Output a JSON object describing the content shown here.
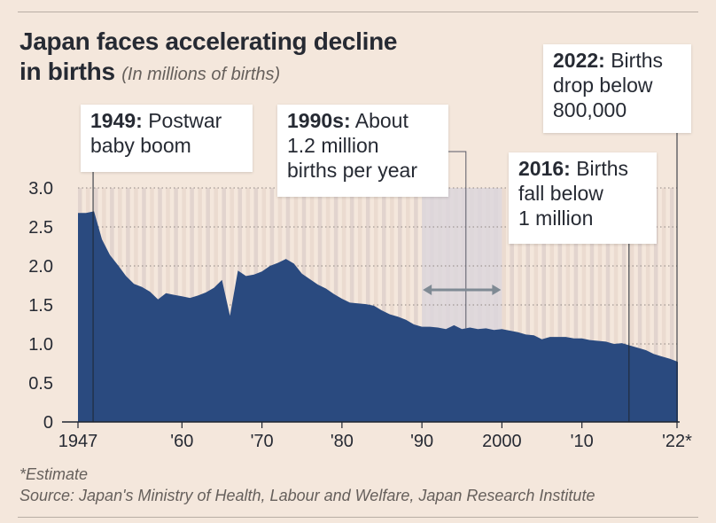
{
  "header": {
    "title_line1": "Japan faces accelerating decline",
    "title_line2": "in births",
    "subtitle": "(In millions of births)"
  },
  "footer": {
    "note": "*Estimate",
    "source": "Source: Japan's Ministry of Health, Labour and Welfare, Japan Research Institute"
  },
  "annotations": [
    {
      "year": "1949:",
      "text": "Postwar",
      "lines": [
        "baby boom"
      ]
    },
    {
      "year": "1990s:",
      "text": "About",
      "lines": [
        "1.2 million",
        "births per year"
      ]
    },
    {
      "year": "2016:",
      "text": "Births",
      "lines": [
        "fall below",
        "1 million"
      ]
    },
    {
      "year": "2022:",
      "text": "Births",
      "lines": [
        "drop below",
        "800,000"
      ]
    }
  ],
  "colors": {
    "background": "#f4e7dc",
    "area": "#2a4a7f",
    "stripe_light": "#ebdbd0",
    "stripe_dark": "#e2d4ce",
    "highlight": "#dcd6dc",
    "arrow": "#7f8a94"
  },
  "chart_data": {
    "type": "area",
    "title": "Japan faces accelerating decline in births",
    "ylabel": "In millions of births",
    "xlabel": "",
    "ylim": [
      0,
      3.0
    ],
    "xlim": [
      1947,
      2022
    ],
    "yticks": [
      0,
      0.5,
      1.0,
      1.5,
      2.0,
      2.5,
      3.0
    ],
    "ytick_labels": [
      "0",
      "0.5",
      "1.0",
      "1.5",
      "2.0",
      "2.5",
      "3.0"
    ],
    "xticks": [
      1947,
      1960,
      1970,
      1980,
      1990,
      2000,
      2010,
      2022
    ],
    "xtick_labels": [
      "1947",
      "'60",
      "'70",
      "'80",
      "'90",
      "2000",
      "'10",
      "'22*"
    ],
    "highlight_range": [
      1990,
      2000
    ],
    "x": [
      1947,
      1948,
      1949,
      1950,
      1951,
      1952,
      1953,
      1954,
      1955,
      1956,
      1957,
      1958,
      1959,
      1960,
      1961,
      1962,
      1963,
      1964,
      1965,
      1966,
      1967,
      1968,
      1969,
      1970,
      1971,
      1972,
      1973,
      1974,
      1975,
      1976,
      1977,
      1978,
      1979,
      1980,
      1981,
      1982,
      1983,
      1984,
      1985,
      1986,
      1987,
      1988,
      1989,
      1990,
      1991,
      1992,
      1993,
      1994,
      1995,
      1996,
      1997,
      1998,
      1999,
      2000,
      2001,
      2002,
      2003,
      2004,
      2005,
      2006,
      2007,
      2008,
      2009,
      2010,
      2011,
      2012,
      2013,
      2014,
      2015,
      2016,
      2017,
      2018,
      2019,
      2020,
      2021,
      2022
    ],
    "series": [
      {
        "name": "Births (millions)",
        "values": [
          2.68,
          2.68,
          2.7,
          2.34,
          2.14,
          2.01,
          1.87,
          1.77,
          1.73,
          1.67,
          1.57,
          1.65,
          1.63,
          1.61,
          1.59,
          1.62,
          1.66,
          1.72,
          1.82,
          1.36,
          1.94,
          1.87,
          1.89,
          1.93,
          2.0,
          2.04,
          2.09,
          2.03,
          1.9,
          1.83,
          1.76,
          1.71,
          1.64,
          1.58,
          1.53,
          1.52,
          1.51,
          1.49,
          1.43,
          1.38,
          1.35,
          1.31,
          1.25,
          1.22,
          1.22,
          1.21,
          1.19,
          1.24,
          1.19,
          1.21,
          1.19,
          1.2,
          1.18,
          1.19,
          1.17,
          1.15,
          1.12,
          1.11,
          1.06,
          1.09,
          1.09,
          1.09,
          1.07,
          1.07,
          1.05,
          1.04,
          1.03,
          1.0,
          1.01,
          0.98,
          0.95,
          0.92,
          0.87,
          0.84,
          0.81,
          0.77
        ]
      }
    ]
  }
}
